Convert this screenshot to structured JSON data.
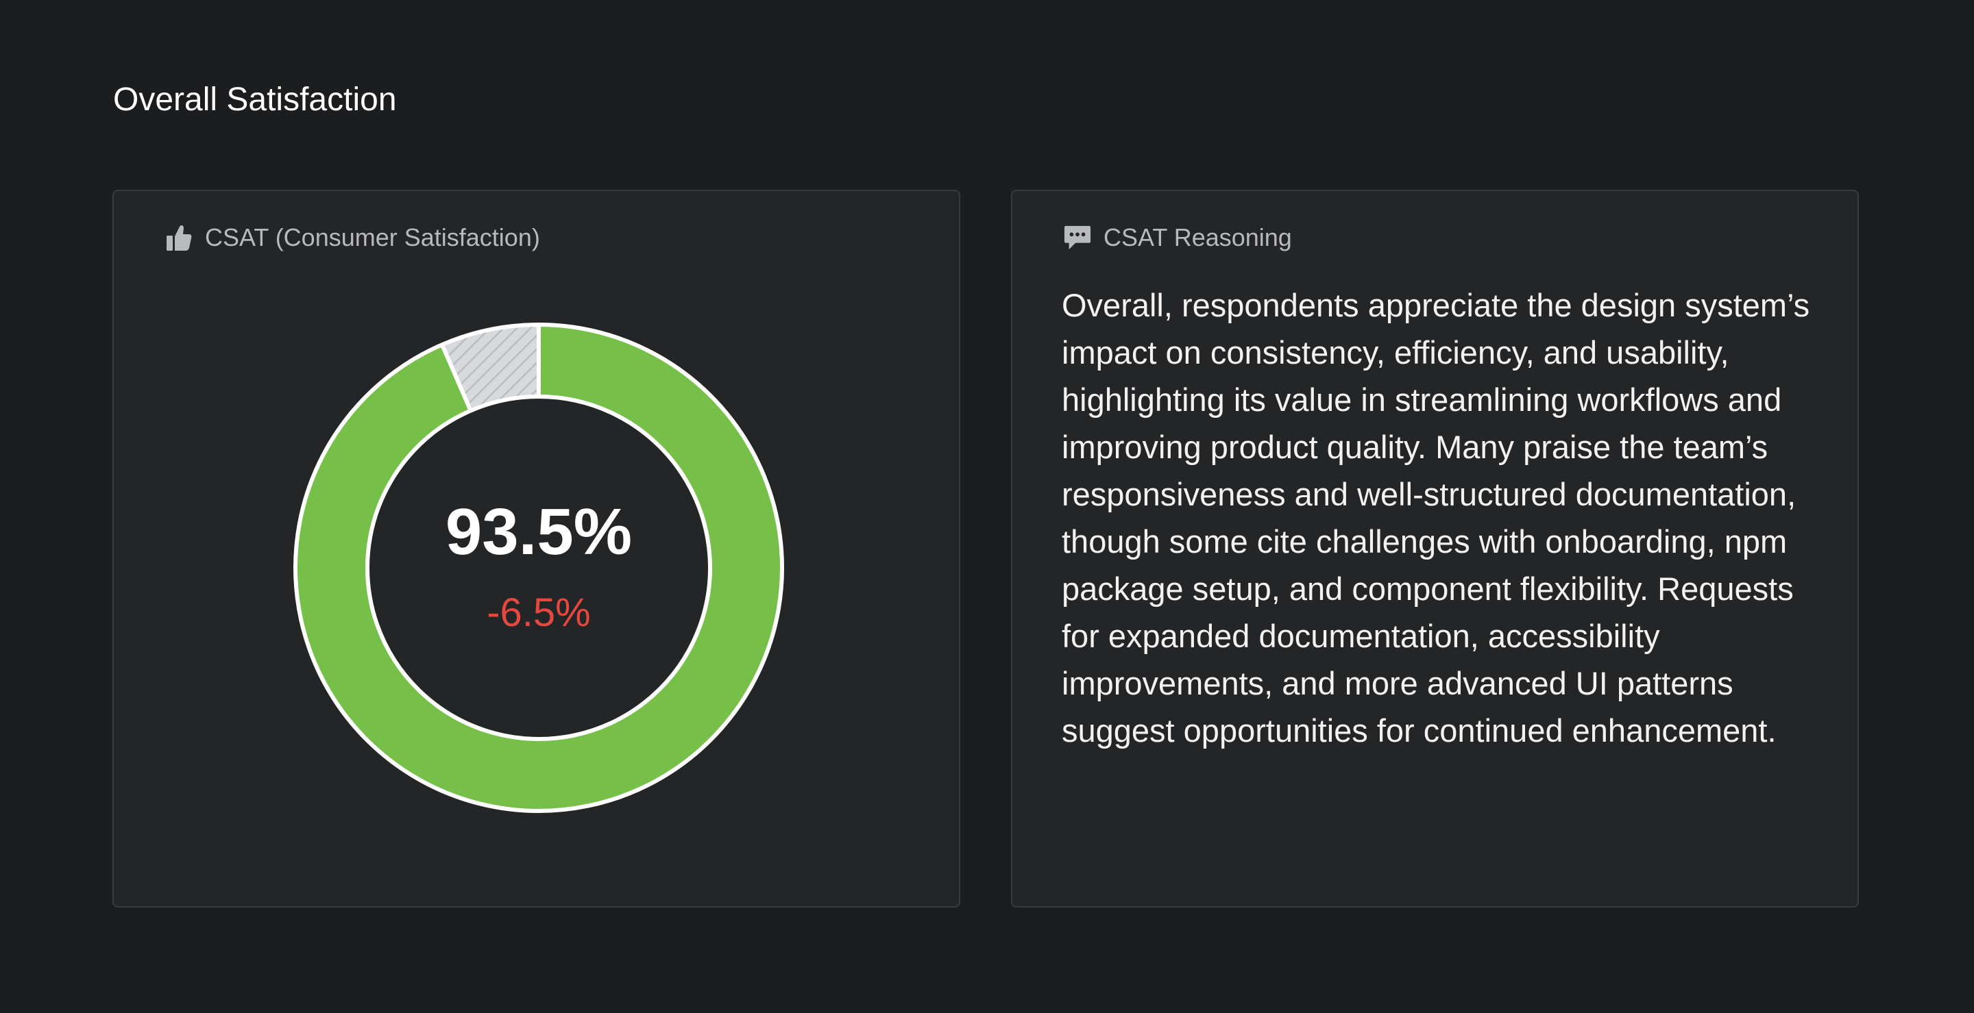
{
  "page": {
    "title": "Overall Satisfaction"
  },
  "csat_card": {
    "title": "CSAT (Consumer Satisfaction)",
    "icon": "thumbs-up-icon",
    "value_label": "93.5%",
    "delta_label": "-6.5%",
    "colors": {
      "satisfied": "#76c04a",
      "remainder": "#d7d9dc",
      "delta": "#e5483f"
    }
  },
  "chart_data": {
    "type": "pie",
    "categories": [
      "",
      ""
    ],
    "values": [
      93.5,
      6.5
    ]
  },
  "reasoning_card": {
    "title": "CSAT Reasoning",
    "icon": "chat-bubble-icon",
    "body": "Overall, respondents appreciate the design system’s impact on consistency, efficiency, and usability, highlighting its value in streamlining workflows and improving product quality. Many praise the team’s responsiveness and well-structured documentation, though some cite challenges with onboarding, npm package setup, and component flexibility. Requests for expanded documentation, accessibility improvements, and more advanced UI patterns suggest opportunities for continued enhancement."
  }
}
